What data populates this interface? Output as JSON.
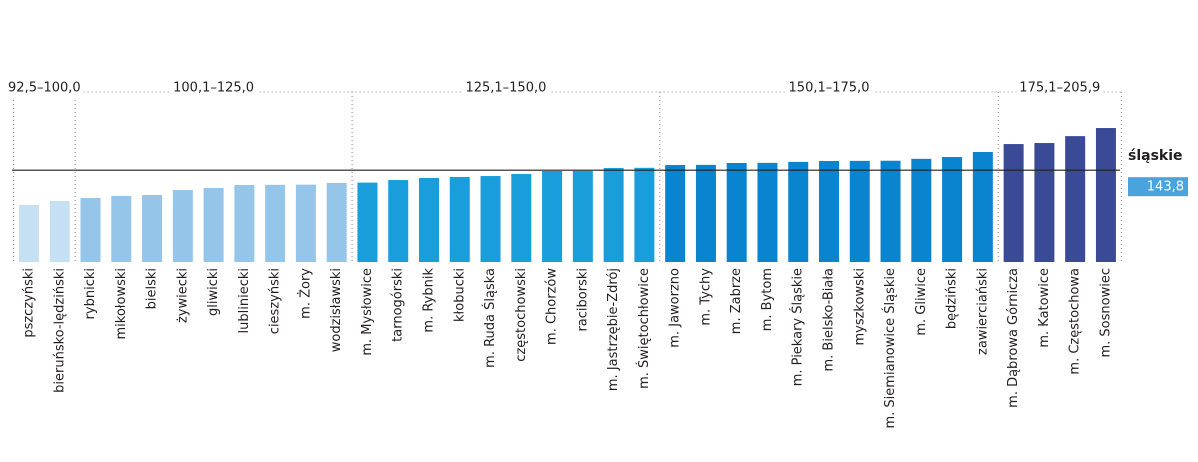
{
  "chart_data": {
    "type": "bar",
    "ylim": [
      8.5,
      259
    ],
    "groups": [
      {
        "label": "92,5–100,0",
        "color": "#c6e0f3",
        "categories": [
          "pszczyński",
          "bieruńsko-lędziński"
        ],
        "values": [
          92.5,
          98.4
        ]
      },
      {
        "label": "100,1–125,0",
        "color": "#96c5ea",
        "categories": [
          "rybnicki",
          "mikołowski",
          "bielski",
          "żywiecki",
          "gliwicki",
          "lubliniecki",
          "cieszyński",
          "m. Żory",
          "wodzisławski"
        ],
        "values": [
          102.8,
          105.8,
          107.2,
          114.6,
          117.5,
          122,
          122.2,
          122.5,
          125
        ]
      },
      {
        "label": "125,1–150,0",
        "color": "#1a9edb",
        "categories": [
          "m. Mysłowice",
          "tarnogórski",
          "m. Rybnik",
          "kłobucki",
          "m. Ruda Śląska",
          "częstochowski",
          "m. Chorzów",
          "raciborski",
          "m. Jastrzębie-Zdrój",
          "m. Świętochłowice"
        ],
        "values": [
          125.5,
          129.3,
          132.3,
          133.8,
          135.2,
          138.2,
          142.6,
          142.8,
          147,
          147.3
        ]
      },
      {
        "label": "150,1–175,0",
        "color": "#0b84cf",
        "categories": [
          "m. Jaworzno",
          "m. Tychy",
          "m. Zabrze",
          "m. Bytom",
          "m. Piekary Śląskie",
          "m. Bielsko-Biała",
          "myszkowski",
          "m. Siemianowice Śląskie",
          "m. Gliwice",
          "będziński",
          "zawierciański"
        ],
        "values": [
          151.4,
          151.6,
          154.4,
          154.6,
          156,
          157.3,
          157.5,
          157.7,
          160.5,
          163.2,
          170.6
        ]
      },
      {
        "label": "175,1–205,9",
        "color": "#3b4a96",
        "categories": [
          "m. Dąbrowa Górnicza",
          "m. Katowice",
          "m. Częstochowa",
          "m. Sosnowiec"
        ],
        "values": [
          182.3,
          183.8,
          194,
          205.9
        ]
      }
    ],
    "reference": {
      "label": "śląskie",
      "value": 143.8,
      "value_label": "143,8",
      "color": "#4aa3dc"
    }
  }
}
